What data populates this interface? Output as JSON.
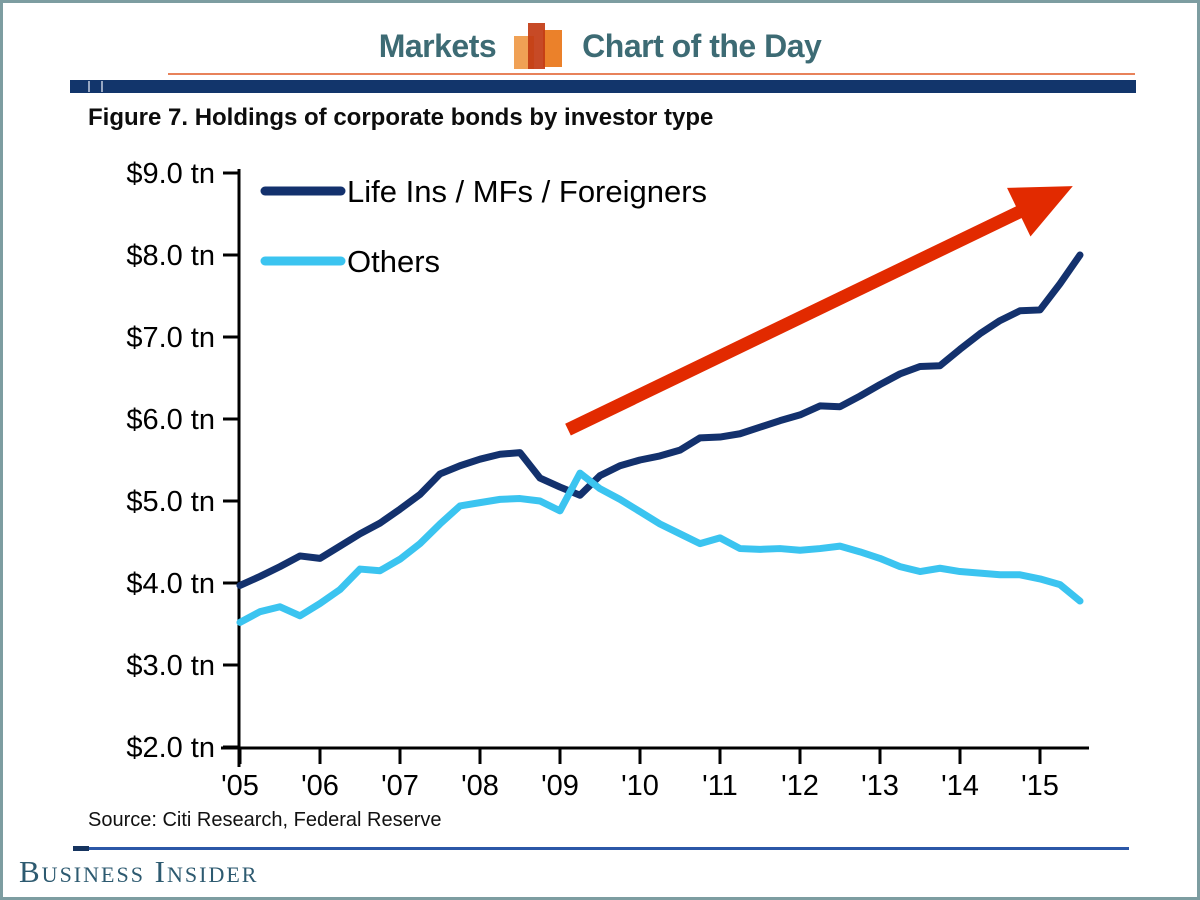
{
  "header": {
    "left_label": "Markets",
    "right_label": "Chart of the Day",
    "icon": "bar-chart-icon",
    "text_color": "#3d6b74",
    "orange_rule_color": "#e8825a",
    "navy_rule_color": "#12356b"
  },
  "figure": {
    "title": "Figure 7. Holdings of corporate bonds by investor type"
  },
  "chart_data": {
    "type": "line",
    "title": "Figure 7. Holdings of corporate bonds by investor type",
    "xlabel": "",
    "ylabel": "",
    "grid": false,
    "legend_position": "top-left",
    "xlim": [
      2004.95,
      2015.6
    ],
    "ylim": [
      2.0,
      9.0
    ],
    "x": [
      2005.0,
      2005.25,
      2005.5,
      2005.75,
      2006.0,
      2006.25,
      2006.5,
      2006.75,
      2007.0,
      2007.25,
      2007.5,
      2007.75,
      2008.0,
      2008.25,
      2008.5,
      2008.75,
      2009.0,
      2009.25,
      2009.5,
      2009.75,
      2010.0,
      2010.25,
      2010.5,
      2010.75,
      2011.0,
      2011.25,
      2011.5,
      2011.75,
      2012.0,
      2012.25,
      2012.5,
      2012.75,
      2013.0,
      2013.25,
      2013.5,
      2013.75,
      2014.0,
      2014.25,
      2014.5,
      2014.75,
      2015.0,
      2015.25,
      2015.5
    ],
    "series": [
      {
        "name": "Life Ins / MFs / Foreigners",
        "color": "#13316d",
        "values": [
          3.97,
          4.08,
          4.2,
          4.33,
          4.3,
          4.45,
          4.6,
          4.73,
          4.9,
          5.08,
          5.33,
          5.43,
          5.51,
          5.57,
          5.59,
          5.28,
          5.17,
          5.07,
          5.31,
          5.43,
          5.5,
          5.55,
          5.62,
          5.77,
          5.78,
          5.82,
          5.9,
          5.98,
          6.05,
          6.16,
          6.15,
          6.28,
          6.42,
          6.55,
          6.64,
          6.65,
          6.85,
          7.04,
          7.2,
          7.32,
          7.33,
          7.65,
          8.0
        ]
      },
      {
        "name": "Others",
        "color": "#3bc4f0",
        "values": [
          3.52,
          3.65,
          3.71,
          3.6,
          3.75,
          3.92,
          4.17,
          4.15,
          4.29,
          4.48,
          4.72,
          4.94,
          4.98,
          5.02,
          5.03,
          5.0,
          4.88,
          5.34,
          5.15,
          5.02,
          4.87,
          4.72,
          4.6,
          4.48,
          4.55,
          4.42,
          4.41,
          4.42,
          4.4,
          4.42,
          4.45,
          4.38,
          4.3,
          4.2,
          4.14,
          4.18,
          4.14,
          4.12,
          4.1,
          4.1,
          4.05,
          3.98,
          3.78
        ]
      }
    ],
    "yticks": [
      {
        "value": 9.0,
        "label": "$9.0 tn"
      },
      {
        "value": 8.0,
        "label": "$8.0 tn"
      },
      {
        "value": 7.0,
        "label": "$7.0 tn"
      },
      {
        "value": 6.0,
        "label": "$6.0 tn"
      },
      {
        "value": 5.0,
        "label": "$5.0 tn"
      },
      {
        "value": 4.0,
        "label": "$4.0 tn"
      },
      {
        "value": 3.0,
        "label": "$3.0 tn"
      },
      {
        "value": 2.0,
        "label": "$2.0 tn"
      }
    ],
    "xticks": [
      {
        "value": 2005,
        "label": "'05"
      },
      {
        "value": 2006,
        "label": "'06"
      },
      {
        "value": 2007,
        "label": "'07"
      },
      {
        "value": 2008,
        "label": "'08"
      },
      {
        "value": 2009,
        "label": "'09"
      },
      {
        "value": 2010,
        "label": "'10"
      },
      {
        "value": 2011,
        "label": "'11"
      },
      {
        "value": 2012,
        "label": "'12"
      },
      {
        "value": 2013,
        "label": "'13"
      },
      {
        "value": 2014,
        "label": "'14"
      },
      {
        "value": 2015,
        "label": "'15"
      }
    ],
    "annotation_arrow": {
      "x1": 2009.1,
      "y1": 5.87,
      "x2": 2015.41,
      "y2": 8.84,
      "color": "#e22a00"
    },
    "axis_color": "#000000"
  },
  "source": {
    "text": "Source: Citi Research, Federal Reserve"
  },
  "footer": {
    "wordmark": "Business Insider"
  }
}
